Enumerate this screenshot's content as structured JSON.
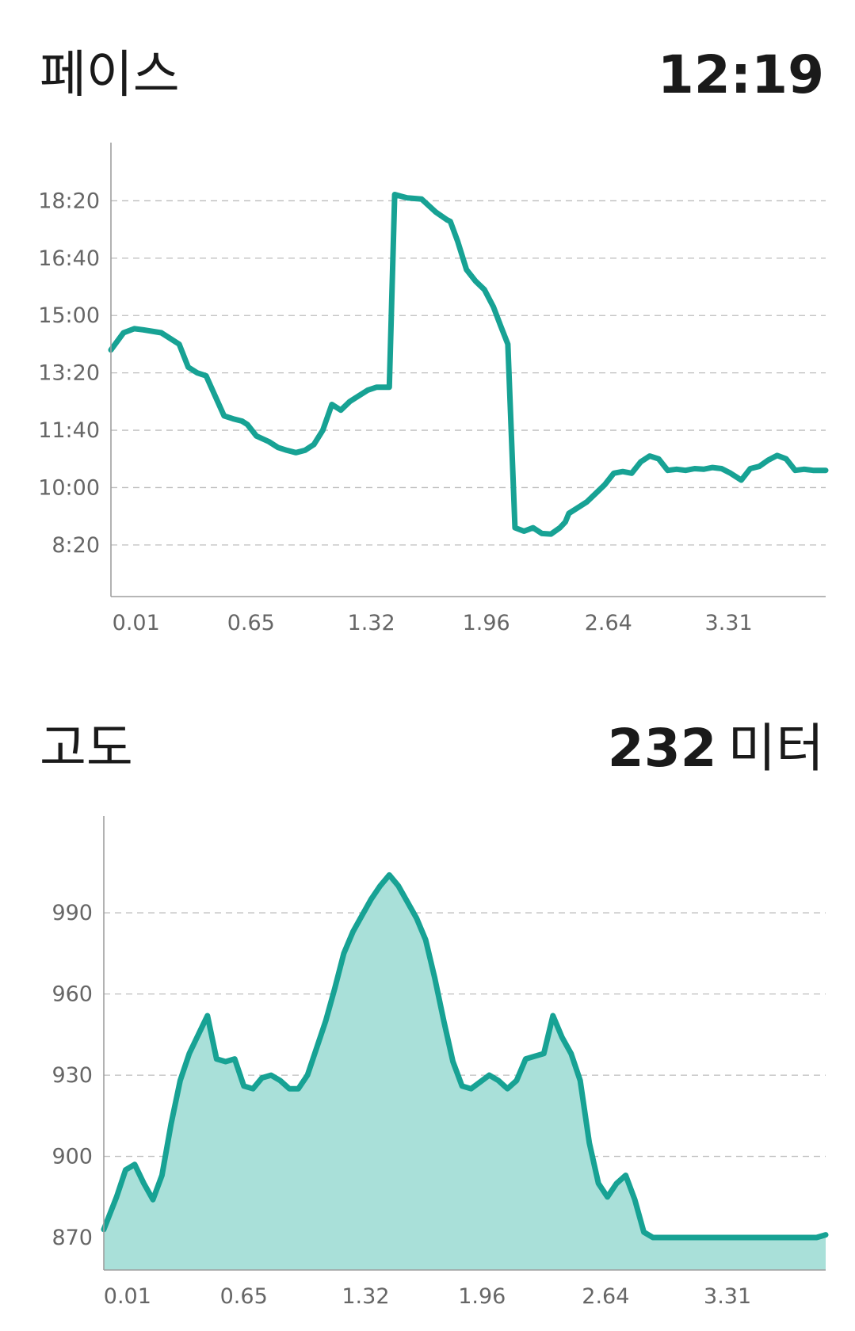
{
  "colors": {
    "line": "#17a294",
    "fill": "#a9e0d9",
    "grid": "#bdbdbd",
    "tick": "#666666",
    "text": "#1a1a1a"
  },
  "pace": {
    "title": "페이스",
    "value": "12:19"
  },
  "elevation": {
    "title": "고도",
    "value": "232",
    "unit": "미터"
  },
  "chart_data": [
    {
      "type": "line",
      "xlabel": "",
      "ylabel": "",
      "grid": true,
      "x_ticks": [
        0.01,
        0.65,
        1.32,
        1.96,
        2.64,
        3.31
      ],
      "x_tick_labels": [
        "0.01",
        "0.65",
        "1.32",
        "1.96",
        "2.64",
        "3.31"
      ],
      "xlim": [
        -0.13,
        3.85
      ],
      "y_ticks": [
        500,
        600,
        700,
        800,
        900,
        1000,
        1100
      ],
      "y_tick_labels": [
        "8:20",
        "10:00",
        "11:40",
        "13:20",
        "15:00",
        "16:40",
        "18:20"
      ],
      "ylim": [
        410,
        1160
      ],
      "series": [
        {
          "x": [
            -0.13,
            -0.06,
            0.0,
            0.05,
            0.15,
            0.25,
            0.3,
            0.35,
            0.4,
            0.45,
            0.5,
            0.55,
            0.6,
            0.63,
            0.68,
            0.75,
            0.8,
            0.85,
            0.9,
            0.95,
            1.0,
            1.05,
            1.1,
            1.15,
            1.2,
            1.25,
            1.3,
            1.35,
            1.42,
            1.45,
            1.52,
            1.6,
            1.68,
            1.74,
            1.76,
            1.8,
            1.85,
            1.9,
            1.95,
            2.0,
            2.04,
            2.08,
            2.12,
            2.17,
            2.22,
            2.27,
            2.32,
            2.37,
            2.4,
            2.42,
            2.47,
            2.52,
            2.57,
            2.62,
            2.67,
            2.72,
            2.77,
            2.82,
            2.87,
            2.92,
            2.97,
            3.02,
            3.07,
            3.12,
            3.17,
            3.22,
            3.27,
            3.32,
            3.38,
            3.43,
            3.48,
            3.53,
            3.58,
            3.63,
            3.68,
            3.73,
            3.78,
            3.85
          ],
          "values": [
            840,
            870,
            877,
            875,
            870,
            850,
            810,
            800,
            795,
            760,
            725,
            720,
            716,
            710,
            690,
            680,
            670,
            665,
            661,
            665,
            675,
            700,
            745,
            735,
            750,
            760,
            770,
            775,
            775,
            1111,
            1105,
            1103,
            1080,
            1067,
            1064,
            1030,
            980,
            960,
            945,
            915,
            882,
            850,
            530,
            524,
            530,
            520,
            519,
            530,
            540,
            555,
            565,
            575,
            590,
            605,
            625,
            628,
            625,
            645,
            655,
            650,
            630,
            632,
            630,
            633,
            632,
            635,
            633,
            625,
            613,
            633,
            637,
            648,
            656,
            650,
            630,
            632,
            630,
            630
          ]
        }
      ]
    },
    {
      "type": "area",
      "xlabel": "",
      "ylabel": "",
      "grid": true,
      "x_ticks": [
        0.01,
        0.65,
        1.32,
        1.96,
        2.64,
        3.31
      ],
      "x_tick_labels": [
        "0.01",
        "0.65",
        "1.32",
        "1.96",
        "2.64",
        "3.31"
      ],
      "xlim": [
        -0.12,
        3.85
      ],
      "y_ticks": [
        870,
        900,
        930,
        960,
        990
      ],
      "y_tick_labels": [
        "870",
        "900",
        "930",
        "960",
        "990"
      ],
      "ylim": [
        858,
        1017
      ],
      "series": [
        {
          "x": [
            -0.12,
            -0.05,
            0.0,
            0.05,
            0.1,
            0.15,
            0.2,
            0.25,
            0.3,
            0.35,
            0.4,
            0.45,
            0.5,
            0.55,
            0.6,
            0.65,
            0.7,
            0.75,
            0.8,
            0.85,
            0.9,
            0.95,
            1.0,
            1.05,
            1.1,
            1.15,
            1.2,
            1.25,
            1.3,
            1.35,
            1.4,
            1.45,
            1.5,
            1.55,
            1.6,
            1.65,
            1.7,
            1.75,
            1.8,
            1.85,
            1.9,
            1.96,
            2.0,
            2.05,
            2.1,
            2.15,
            2.2,
            2.25,
            2.3,
            2.35,
            2.4,
            2.45,
            2.5,
            2.55,
            2.6,
            2.65,
            2.7,
            2.75,
            2.8,
            2.85,
            2.9,
            2.95,
            3.0,
            3.05,
            3.1,
            3.15,
            3.2,
            3.25,
            3.3,
            3.35,
            3.4,
            3.45,
            3.5,
            3.55,
            3.6,
            3.65,
            3.7,
            3.75,
            3.8,
            3.85
          ],
          "values": [
            873,
            885,
            895,
            897,
            890,
            884,
            893,
            912,
            928,
            938,
            945,
            952,
            936,
            935,
            936,
            926,
            925,
            929,
            930,
            928,
            925,
            925,
            930,
            940,
            950,
            962,
            975,
            983,
            989,
            995,
            1000,
            1004,
            1000,
            994,
            988,
            980,
            966,
            950,
            935,
            926,
            925,
            928,
            930,
            928,
            925,
            928,
            936,
            937,
            938,
            952,
            944,
            938,
            928,
            905,
            890,
            885,
            890,
            893,
            884,
            872,
            870,
            870,
            870,
            870,
            870,
            870,
            870,
            870,
            870,
            870,
            870,
            870,
            870,
            870,
            870,
            870,
            870,
            870,
            870,
            871
          ]
        }
      ]
    }
  ]
}
